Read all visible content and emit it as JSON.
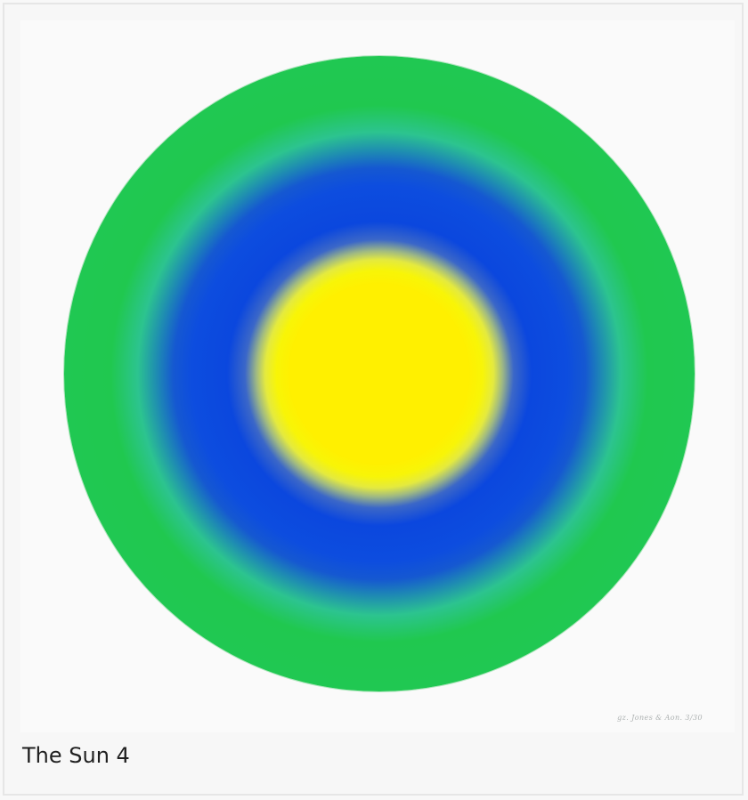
{
  "artwork": {
    "title": "The Sun 4",
    "signature": "gz. Jones & Aon. 3/30",
    "colors": {
      "core": "#fff000",
      "mid": "#0b47de",
      "outer": "#20c84f",
      "edge": "#3fd35d",
      "frame_bg": "#fafafa",
      "page_bg": "#f7f7f7"
    }
  }
}
